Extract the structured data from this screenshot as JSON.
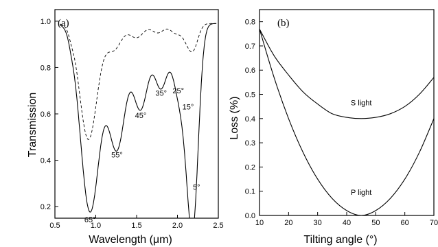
{
  "chart_data": [
    {
      "panel_label": "(a)",
      "type": "line",
      "xlabel": "Wavelength (μm)",
      "ylabel": "Transmission",
      "xlim": [
        0.5,
        2.5
      ],
      "ylim": [
        0.15,
        1.05
      ],
      "xticks": [
        0.5,
        1.0,
        1.5,
        2.0,
        2.5
      ],
      "yticks": [
        0.2,
        0.4,
        0.6,
        0.8,
        1.0
      ],
      "solid_dips": [
        {
          "label": "65°",
          "center": 0.93,
          "min": 0.18
        },
        {
          "label": "55°",
          "center": 1.26,
          "min": 0.46
        },
        {
          "label": "45°",
          "center": 1.55,
          "min": 0.63
        },
        {
          "label": "35°",
          "center": 1.8,
          "min": 0.72
        },
        {
          "label": "25°",
          "center": 2.01,
          "min": 0.73
        },
        {
          "label": "15°",
          "center": 2.13,
          "min": 0.66
        },
        {
          "label": "5°",
          "center": 2.2,
          "min": 0.32
        }
      ],
      "dashed_dips": [
        {
          "center": 0.91,
          "min": 0.49
        },
        {
          "center": 1.22,
          "min": 0.88
        },
        {
          "center": 1.5,
          "min": 0.93
        },
        {
          "center": 1.76,
          "min": 0.95
        },
        {
          "center": 1.98,
          "min": 0.95
        },
        {
          "center": 2.12,
          "min": 0.93
        },
        {
          "center": 2.2,
          "min": 0.9
        }
      ]
    },
    {
      "panel_label": "(b)",
      "type": "line",
      "xlabel": "Tilting angle (°)",
      "ylabel": "Loss (%)",
      "xlim": [
        10,
        70
      ],
      "ylim": [
        0,
        0.85
      ],
      "xticks": [
        10,
        20,
        30,
        40,
        50,
        60,
        70
      ],
      "yticks": [
        0.0,
        0.1,
        0.2,
        0.3,
        0.4,
        0.5,
        0.6,
        0.7,
        0.8
      ],
      "series": [
        {
          "name": "S light",
          "x": [
            10,
            15,
            20,
            25,
            30,
            35,
            40,
            45,
            50,
            55,
            60,
            65,
            70
          ],
          "y": [
            0.77,
            0.66,
            0.58,
            0.51,
            0.46,
            0.42,
            0.405,
            0.4,
            0.405,
            0.42,
            0.45,
            0.5,
            0.57
          ]
        },
        {
          "name": "P light",
          "x": [
            10,
            15,
            20,
            25,
            30,
            35,
            40,
            45,
            50,
            55,
            60,
            65,
            70
          ],
          "y": [
            0.77,
            0.57,
            0.4,
            0.26,
            0.15,
            0.07,
            0.02,
            0.0,
            0.02,
            0.07,
            0.15,
            0.26,
            0.4
          ]
        }
      ]
    }
  ]
}
